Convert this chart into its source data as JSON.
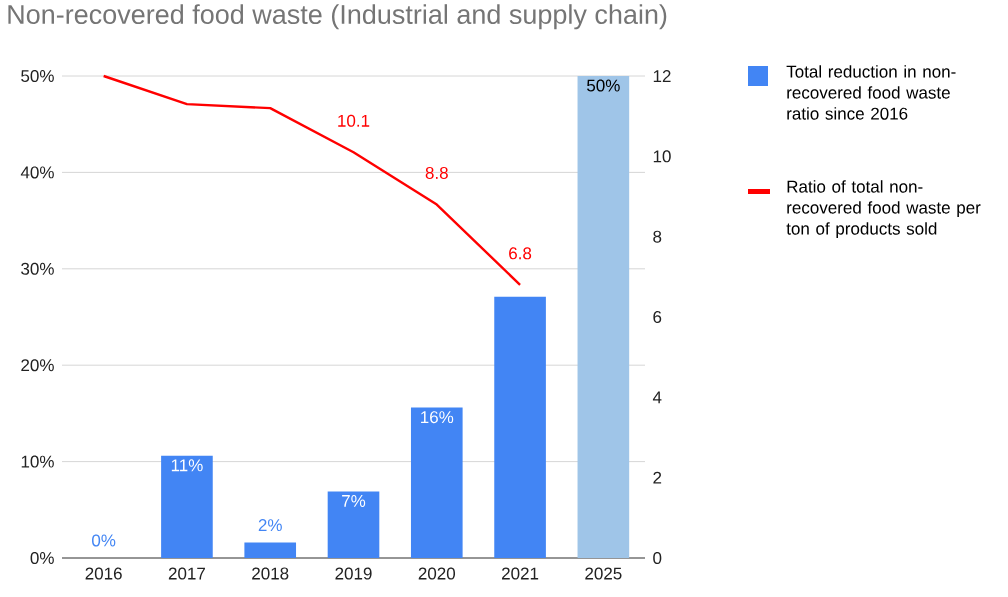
{
  "chart_data": {
    "type": "bar",
    "title": "Non-recovered food waste (Industrial and supply chain)",
    "categories": [
      "2016",
      "2017",
      "2018",
      "2019",
      "2020",
      "2021",
      "2025"
    ],
    "series": [
      {
        "name": "Total reduction in non-recovered food waste ratio since 2016",
        "colors": [
          "#4285f4",
          "#4285f4",
          "#4285f4",
          "#4285f4",
          "#4285f4",
          "#4285f4",
          "#9fc5e8"
        ],
        "color": "#4285f4",
        "values": [
          0,
          10.6,
          1.6,
          6.9,
          15.6,
          27.1,
          50
        ],
        "value_labels": [
          "0%",
          "11%",
          "2%",
          "7%",
          "16%",
          null,
          "50%"
        ]
      },
      {
        "name": "Ratio of total non-recovered food waste per ton of products sold",
        "type": "line",
        "axis": "y2",
        "color": "#ff0000",
        "values": [
          12.0,
          11.3,
          11.2,
          10.1,
          8.8,
          6.8,
          null
        ],
        "value_labels": [
          null,
          null,
          null,
          "10.1",
          "8.8",
          "6.8",
          null
        ]
      }
    ],
    "ylim": [
      0,
      50
    ],
    "yticks": [
      {
        "value": 0,
        "label": "0%"
      },
      {
        "value": 10,
        "label": "10%"
      },
      {
        "value": 20,
        "label": "20%"
      },
      {
        "value": 30,
        "label": "30%"
      },
      {
        "value": 40,
        "label": "40%"
      },
      {
        "value": 50,
        "label": "50%"
      }
    ],
    "y2lim": [
      0,
      12
    ],
    "y2ticks": [
      0,
      2,
      4,
      6,
      8,
      10,
      12
    ],
    "grid": "y",
    "legend": "right"
  }
}
